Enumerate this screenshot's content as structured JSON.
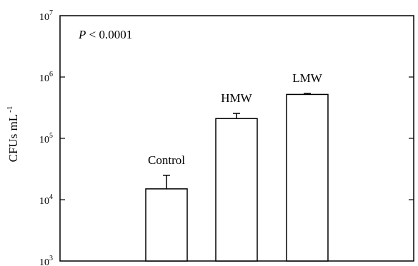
{
  "chart_data": {
    "type": "bar",
    "categories": [
      "Control",
      "HMW",
      "LMW"
    ],
    "values": [
      15000,
      210000,
      520000
    ],
    "error_upper": [
      25000,
      255000,
      540000
    ],
    "ylabel": "CFUs mL",
    "ylabel_superscript": "-1",
    "yscale": "log",
    "ylim": [
      1000,
      10000000
    ],
    "y_ticks": [
      {
        "base": "10",
        "exp": "3",
        "value": 1000
      },
      {
        "base": "10",
        "exp": "4",
        "value": 10000
      },
      {
        "base": "10",
        "exp": "5",
        "value": 100000
      },
      {
        "base": "10",
        "exp": "6",
        "value": 1000000
      },
      {
        "base": "10",
        "exp": "7",
        "value": 10000000
      }
    ],
    "annotation": {
      "italic": "P",
      "rest": " < 0.0001"
    },
    "bar_color": "#ffffff",
    "grid": false
  }
}
